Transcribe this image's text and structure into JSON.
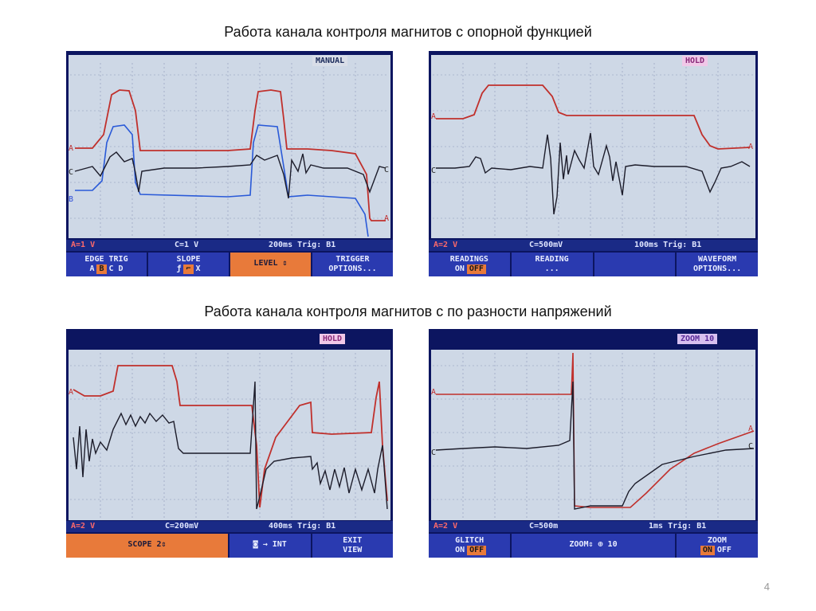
{
  "headings": {
    "top": "Работа канала контроля магнитов с опорной функцией",
    "bottom": "Работа канала контроля магнитов с по разности напряжений"
  },
  "scope1": {
    "badge": "MANUAL",
    "status": {
      "left": "A=1 V",
      "mid": "C=1 V",
      "right": "200ms Trig: B1"
    },
    "softkeys": [
      {
        "line1": "EDGE TRIG",
        "line2": [
          "A",
          "B",
          "C",
          "D"
        ]
      },
      {
        "line1": "SLOPE",
        "line2": [
          "ƒ",
          "⌐",
          "X"
        ]
      },
      {
        "line1": "LEVEL ⇕",
        "line2": []
      },
      {
        "line1": "TRIGGER",
        "line2": [
          "OPTIONS..."
        ]
      }
    ]
  },
  "scope2": {
    "badge": "HOLD",
    "status": {
      "left": "A=2 V",
      "mid": "C=500mV",
      "right": "100ms Trig: B1"
    },
    "softkeys": [
      {
        "line1": "READINGS",
        "line2": [
          "ON",
          "OFF"
        ]
      },
      {
        "line1": "READING",
        "line2": [
          "..."
        ]
      },
      {
        "line1": "",
        "line2": []
      },
      {
        "line1": "WAVEFORM",
        "line2": [
          "OPTIONS..."
        ]
      }
    ]
  },
  "scope3": {
    "badge": "HOLD",
    "status": {
      "left": "A=2 V",
      "mid": "C=200mV",
      "right": "400ms Trig: B1"
    },
    "softkeys": [
      {
        "line1": "SCOPE 2⇕",
        "line2": []
      },
      {
        "line1": "◙ → INT",
        "line2": []
      },
      {
        "line1": "EXIT",
        "line2": [
          "VIEW"
        ]
      }
    ]
  },
  "scope4": {
    "badge": "ZOOM 10",
    "status": {
      "left": "A=2 V",
      "mid": "C=500m",
      "right": "1ms Trig: B1"
    },
    "softkeys": [
      {
        "line1": "GLITCH",
        "line2": [
          "ON",
          "OFF"
        ]
      },
      {
        "line1": "ZOOM⇕ ⊕ 10",
        "line2": []
      },
      {
        "line1": "ZOOM",
        "line2": [
          "ON",
          "OFF"
        ]
      }
    ]
  },
  "markers": {
    "a": "A",
    "b": "B",
    "c": "C"
  },
  "page_number": "4",
  "colors": {
    "trace_a": "#c0302c",
    "trace_b": "#2a5ad8",
    "trace_c": "#1c1c2a",
    "screen": "#ced8e6",
    "bezel": "#0c1560",
    "softkey": "#2a3ab0",
    "accent": "#e87a3a"
  }
}
